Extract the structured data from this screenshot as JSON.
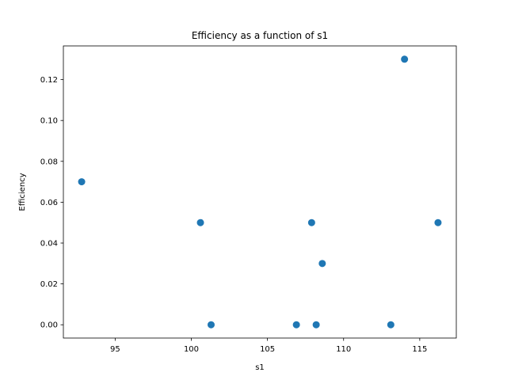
{
  "chart_data": {
    "type": "scatter",
    "title": "Efficiency as a function of s1",
    "xlabel": "s1",
    "ylabel": "Efficiency",
    "xlim": [
      91.6,
      117.4
    ],
    "ylim": [
      -0.0065,
      0.1365
    ],
    "xticks": [
      95,
      100,
      105,
      110,
      115
    ],
    "xtick_labels": [
      "95",
      "100",
      "105",
      "110",
      "115"
    ],
    "yticks": [
      0.0,
      0.02,
      0.04,
      0.06,
      0.08,
      0.1,
      0.12
    ],
    "ytick_labels": [
      "0.00",
      "0.02",
      "0.04",
      "0.06",
      "0.08",
      "0.10",
      "0.12"
    ],
    "grid": false,
    "marker_color": "#1f77b4",
    "points": [
      {
        "x": 92.8,
        "y": 0.07
      },
      {
        "x": 100.6,
        "y": 0.05
      },
      {
        "x": 101.3,
        "y": 0.0
      },
      {
        "x": 106.9,
        "y": 0.0
      },
      {
        "x": 107.9,
        "y": 0.05
      },
      {
        "x": 108.2,
        "y": 0.0
      },
      {
        "x": 108.6,
        "y": 0.03
      },
      {
        "x": 113.1,
        "y": 0.0
      },
      {
        "x": 114.0,
        "y": 0.13
      },
      {
        "x": 116.2,
        "y": 0.05
      }
    ]
  }
}
